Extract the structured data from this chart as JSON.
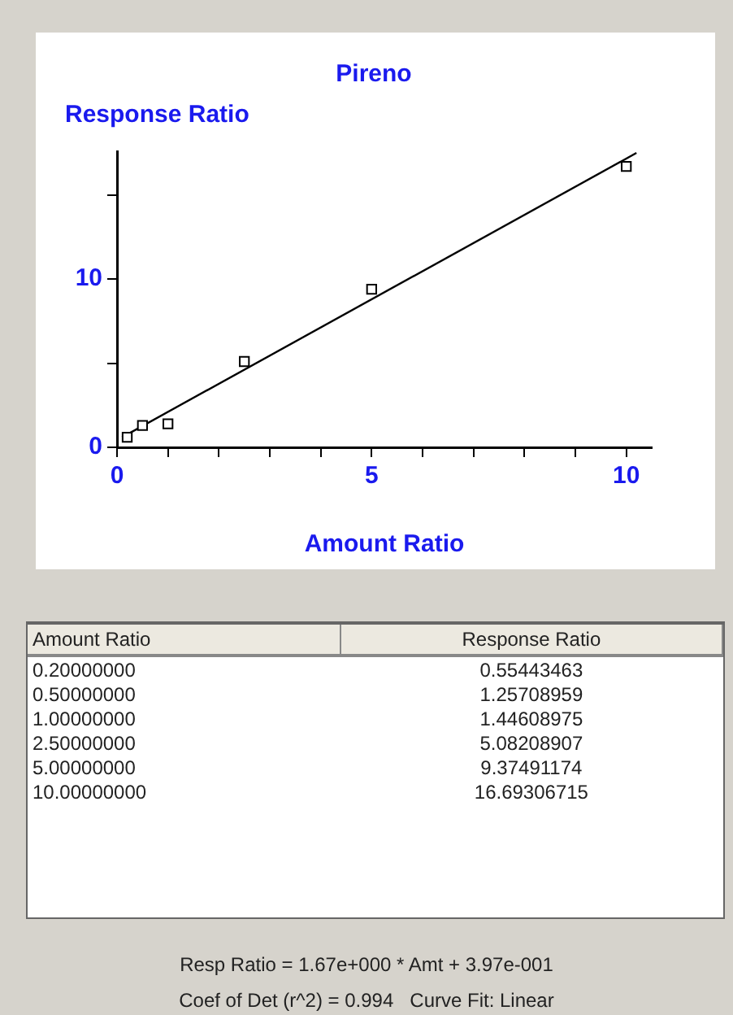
{
  "chart_data": [
    {
      "type": "scatter",
      "title": "Pireno",
      "xlabel": "Amount Ratio",
      "ylabel": "Response Ratio",
      "series": [
        {
          "type": "scatter",
          "color": "#000000",
          "x": [
            0.2,
            0.5,
            1.0,
            2.5,
            5.0,
            10.0
          ],
          "values": [
            0.6,
            1.3,
            1.4,
            5.1,
            9.4,
            16.7
          ]
        },
        {
          "type": "line",
          "color": "#000000",
          "x": [
            0.1,
            10.2
          ],
          "values": [
            0.6,
            17.5
          ],
          "marker": "none"
        }
      ],
      "xlim": [
        0,
        10.5
      ],
      "ylim": [
        0,
        17.6
      ],
      "xticks": [
        0,
        {
          "value": 1,
          "label": null
        },
        {
          "value": 2,
          "label": null
        },
        {
          "value": 3,
          "label": null
        },
        {
          "value": 4,
          "label": null
        },
        5,
        {
          "value": 6,
          "label": null
        },
        {
          "value": 7,
          "label": null
        },
        {
          "value": 8,
          "label": null
        },
        {
          "value": 9,
          "label": null
        },
        10
      ],
      "yticks": [
        0,
        {
          "value": 5,
          "label": null
        },
        10,
        {
          "value": 15,
          "label": null
        }
      ],
      "grid": false,
      "legend": false,
      "marker": "square",
      "line_style": "solid"
    },
    {
      "type": "other",
      "xlabel": "Amount Ratio",
      "ylabel": "Response Ratio",
      "categories": [
        "0.20000000",
        "0.50000000",
        "1.00000000",
        "2.50000000",
        "5.00000000",
        "10.00000000"
      ],
      "values": [
        0.55443463,
        1.25708959,
        1.44608975,
        5.08208907,
        9.37491174,
        16.69306715
      ],
      "data_labels": true,
      "annotations": [
        "Resp Ratio = 1.67e+000 * Amt + 3.97e-001",
        "Coef of Det (r^2) = 0.994   Curve Fit: Linear"
      ]
    }
  ]
}
